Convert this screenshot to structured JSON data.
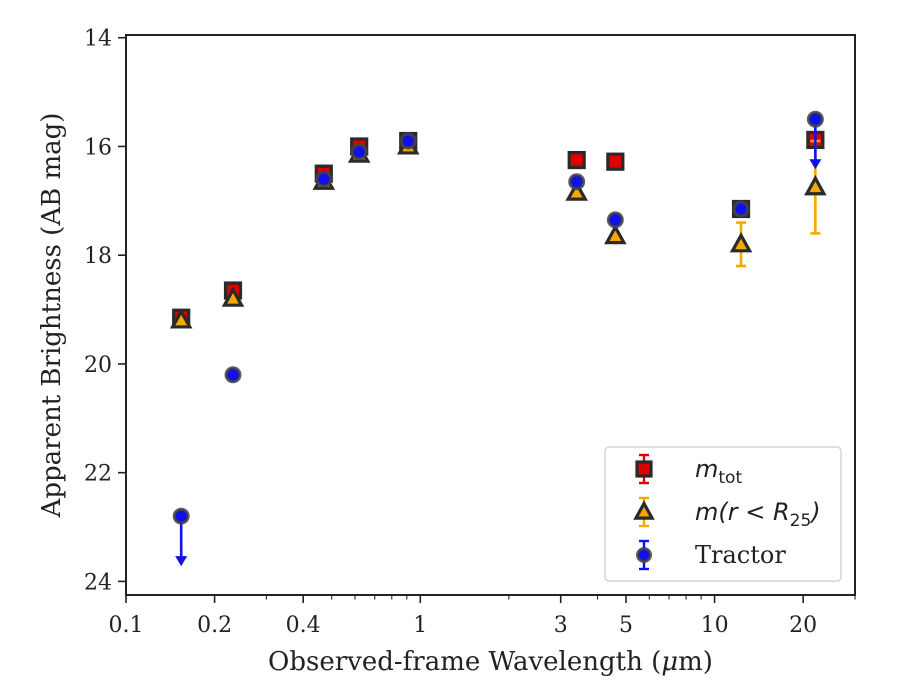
{
  "chart_data": {
    "type": "scatter",
    "xlabel_prefix": "Observed-frame Wavelength (",
    "xlabel_mu": "μ",
    "xlabel_suffix": "m)",
    "ylabel": "Apparent Brightness (AB mag)",
    "xscale": "log",
    "yaxis_inverted": true,
    "xlim": [
      0.1,
      30
    ],
    "ylim": [
      24.25,
      13.95
    ],
    "xticks": [
      {
        "value": 0.1,
        "label": "0.1"
      },
      {
        "value": 0.2,
        "label": "0.2"
      },
      {
        "value": 0.4,
        "label": "0.4"
      },
      {
        "value": 1,
        "label": "1"
      },
      {
        "value": 3,
        "label": "3"
      },
      {
        "value": 5,
        "label": "5"
      },
      {
        "value": 10,
        "label": "10"
      },
      {
        "value": 20,
        "label": "20"
      }
    ],
    "yticks": [
      {
        "value": 14,
        "label": "14"
      },
      {
        "value": 16,
        "label": "16"
      },
      {
        "value": 18,
        "label": "18"
      },
      {
        "value": 20,
        "label": "20"
      },
      {
        "value": 22,
        "label": "22"
      },
      {
        "value": 24,
        "label": "24"
      }
    ],
    "legend_position": "lower-right",
    "series": [
      {
        "name": "m_tot",
        "marker": "square",
        "color": "#e00000",
        "points": [
          {
            "x": 0.154,
            "y": 19.15
          },
          {
            "x": 0.231,
            "y": 18.65
          },
          {
            "x": 0.47,
            "y": 16.5
          },
          {
            "x": 0.62,
            "y": 16.0
          },
          {
            "x": 0.91,
            "y": 15.9
          },
          {
            "x": 3.4,
            "y": 16.25
          },
          {
            "x": 4.6,
            "y": 16.28
          },
          {
            "x": 12.3,
            "y": 17.15
          },
          {
            "x": 22.0,
            "y": 15.88
          }
        ]
      },
      {
        "name": "m(r<R25)",
        "marker": "triangle",
        "color": "#f5a800",
        "points": [
          {
            "x": 0.154,
            "y": 19.2
          },
          {
            "x": 0.231,
            "y": 18.8
          },
          {
            "x": 0.47,
            "y": 16.65
          },
          {
            "x": 0.62,
            "y": 16.15
          },
          {
            "x": 0.91,
            "y": 16.0
          },
          {
            "x": 3.4,
            "y": 16.85
          },
          {
            "x": 4.6,
            "y": 17.65
          },
          {
            "x": 12.3,
            "y": 17.8,
            "err_low": 0.4,
            "err_high": 0.4
          },
          {
            "x": 22.0,
            "y": 16.75,
            "err_low": 0.85,
            "err_high": 0.85
          }
        ]
      },
      {
        "name": "Tractor",
        "marker": "circle",
        "color": "#1010e8",
        "points": [
          {
            "x": 0.154,
            "y": 22.8,
            "upper_limit": true
          },
          {
            "x": 0.231,
            "y": 20.2
          },
          {
            "x": 0.47,
            "y": 16.6
          },
          {
            "x": 0.62,
            "y": 16.1
          },
          {
            "x": 0.91,
            "y": 15.9
          },
          {
            "x": 3.4,
            "y": 16.65
          },
          {
            "x": 4.6,
            "y": 17.35
          },
          {
            "x": 12.3,
            "y": 17.15
          },
          {
            "x": 22.0,
            "y": 15.5,
            "upper_limit": true
          }
        ]
      }
    ],
    "legend": [
      {
        "math": "m",
        "sub": "tot",
        "suffix": ""
      },
      {
        "math": "m(r < R",
        "sub": "25",
        "suffix": ")"
      },
      {
        "text": "Tractor"
      }
    ]
  }
}
